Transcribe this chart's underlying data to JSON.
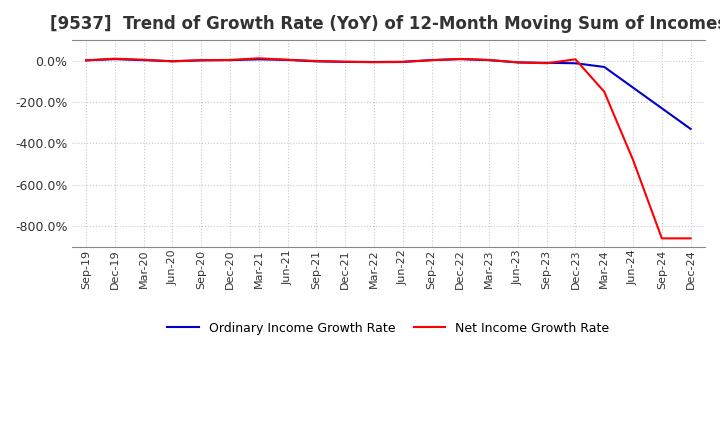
{
  "title": "[9537]  Trend of Growth Rate (YoY) of 12-Month Moving Sum of Incomes",
  "title_fontsize": 12,
  "ylim": [
    -900,
    100
  ],
  "yticks": [
    0,
    -200,
    -400,
    -600,
    -800
  ],
  "ytick_labels": [
    "0.0%",
    "-200.0%",
    "-400.0%",
    "-600.0%",
    "-800.0%"
  ],
  "background_color": "#ffffff",
  "grid_color": "#c8c8c8",
  "ordinary_color": "#0000cc",
  "net_color": "#ff0000",
  "legend_ordinary": "Ordinary Income Growth Rate",
  "legend_net": "Net Income Growth Rate",
  "x_labels": [
    "Sep-19",
    "Dec-19",
    "Mar-20",
    "Jun-20",
    "Sep-20",
    "Dec-20",
    "Mar-21",
    "Jun-21",
    "Sep-21",
    "Dec-21",
    "Mar-22",
    "Jun-22",
    "Sep-22",
    "Dec-22",
    "Mar-23",
    "Jun-23",
    "Sep-23",
    "Dec-23",
    "Mar-24",
    "Jun-24",
    "Sep-24",
    "Dec-24"
  ],
  "ordinary_income": [
    2,
    8,
    3,
    -2,
    2,
    3,
    7,
    4,
    -3,
    -5,
    -6,
    -5,
    3,
    8,
    3,
    -8,
    -10,
    -12,
    -30,
    -130,
    -230,
    -330
  ],
  "net_income": [
    2,
    10,
    5,
    -3,
    3,
    4,
    12,
    5,
    -1,
    -5,
    -7,
    -6,
    3,
    9,
    4,
    -8,
    -12,
    7,
    -150,
    -480,
    -860,
    -860
  ]
}
